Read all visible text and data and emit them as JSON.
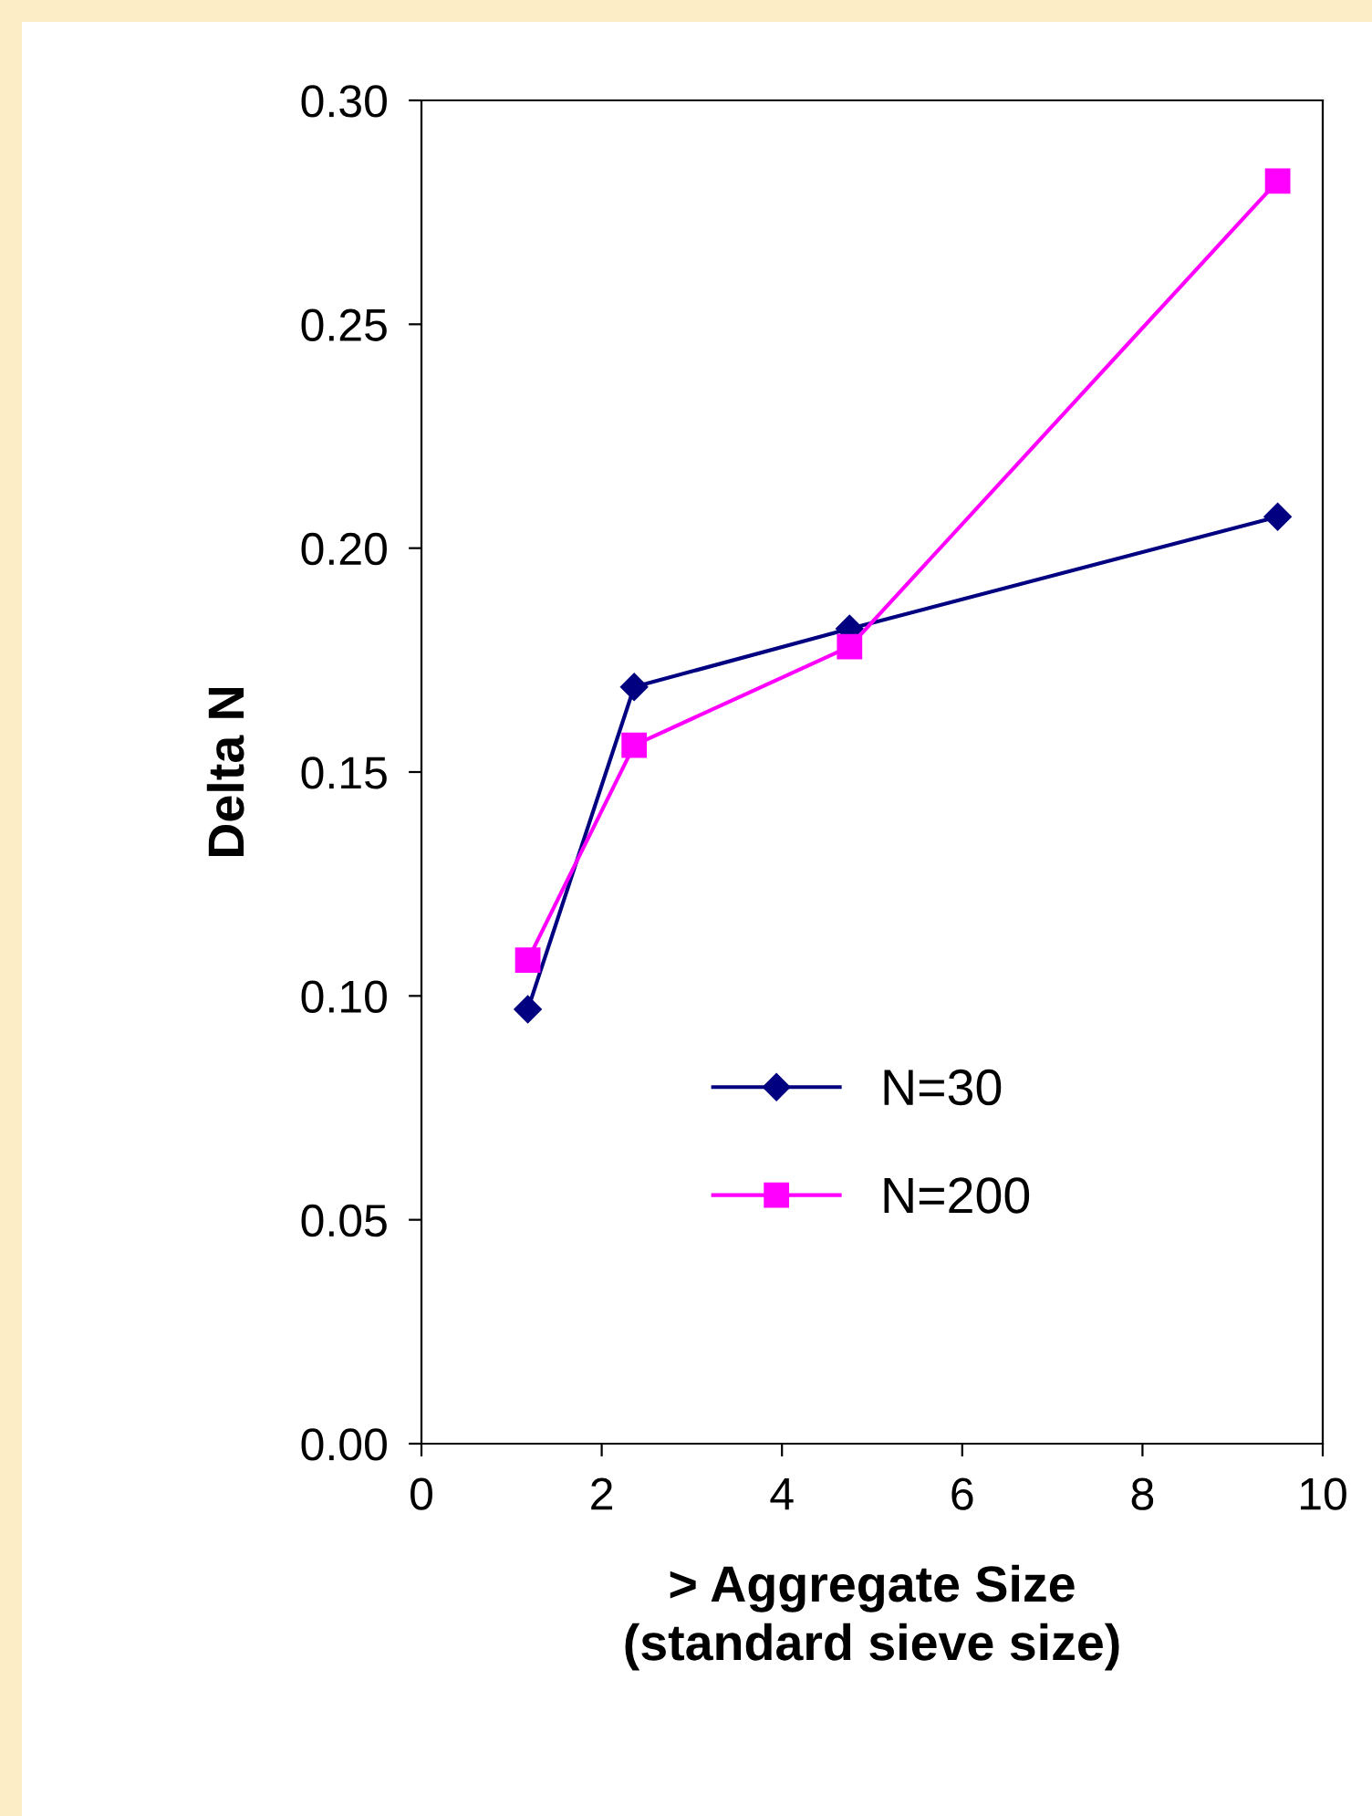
{
  "chart_data": {
    "type": "line",
    "xlabel": "> Aggregate Size\n(standard sieve size)",
    "ylabel": "Delta N",
    "series": [
      {
        "name": "N=30",
        "color": "#000080",
        "marker": "diamond",
        "x": [
          1.18,
          2.36,
          4.75,
          9.5
        ],
        "values": [
          0.097,
          0.169,
          0.182,
          0.207
        ]
      },
      {
        "name": "N=200",
        "color": "#ff00ff",
        "marker": "square",
        "x": [
          1.18,
          2.36,
          4.75,
          9.5
        ],
        "values": [
          0.108,
          0.156,
          0.178,
          0.282
        ]
      }
    ],
    "xlim": [
      0,
      10
    ],
    "xticks": [
      0,
      2,
      4,
      6,
      8,
      10
    ],
    "ylim": [
      0,
      0.3
    ],
    "yticks": [
      {
        "value": 0,
        "label": "0.00"
      },
      {
        "value": 0.05,
        "label": "0.05"
      },
      {
        "value": 0.1,
        "label": "0.10"
      },
      {
        "value": 0.15,
        "label": "0.15"
      },
      {
        "value": 0.2,
        "label": "0.20"
      },
      {
        "value": 0.25,
        "label": "0.25"
      },
      {
        "value": 0.3,
        "label": "0.30"
      }
    ],
    "grid": false,
    "legend": "bottom",
    "line_style": "solid"
  }
}
